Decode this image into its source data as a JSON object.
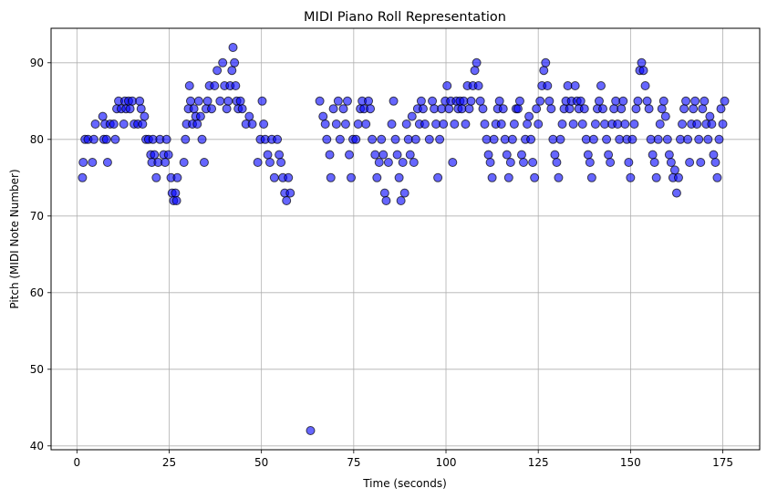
{
  "chart_data": {
    "type": "scatter",
    "title": "MIDI Piano Roll Representation",
    "xlabel": "Time (seconds)",
    "ylabel": "Pitch (MIDI Note Number)",
    "xlim": [
      -7,
      185
    ],
    "ylim": [
      39.5,
      94.5
    ],
    "xticks": [
      0,
      25,
      50,
      75,
      100,
      125,
      150,
      175
    ],
    "yticks": [
      40,
      50,
      60,
      70,
      80,
      90
    ],
    "grid": true,
    "marker_color": "#0000ff",
    "marker_edge": "#000000",
    "series": [
      {
        "points": [
          [
            1.5,
            75
          ],
          [
            1.7,
            77
          ],
          [
            2.2,
            80
          ],
          [
            3,
            80
          ],
          [
            4.2,
            77
          ],
          [
            4.6,
            80
          ],
          [
            5,
            82
          ],
          [
            7,
            83
          ],
          [
            7.3,
            80
          ],
          [
            7.6,
            82
          ],
          [
            8,
            80
          ],
          [
            8.3,
            77
          ],
          [
            9,
            82
          ],
          [
            10,
            82
          ],
          [
            10.4,
            80
          ],
          [
            10.8,
            84
          ],
          [
            11.3,
            85
          ],
          [
            12,
            84
          ],
          [
            12.7,
            82
          ],
          [
            13,
            85
          ],
          [
            13.3,
            84
          ],
          [
            14,
            85
          ],
          [
            14.4,
            84
          ],
          [
            15,
            85
          ],
          [
            15.5,
            82
          ],
          [
            16.5,
            82
          ],
          [
            17,
            85
          ],
          [
            17.4,
            84
          ],
          [
            17.8,
            82
          ],
          [
            18.3,
            83
          ],
          [
            18.7,
            80
          ],
          [
            19.4,
            80
          ],
          [
            20,
            78
          ],
          [
            20.3,
            77
          ],
          [
            20.6,
            80
          ],
          [
            21,
            78
          ],
          [
            21.5,
            75
          ],
          [
            22,
            77
          ],
          [
            22.5,
            80
          ],
          [
            23.5,
            78
          ],
          [
            23.9,
            77
          ],
          [
            24.3,
            80
          ],
          [
            24.8,
            78
          ],
          [
            25.5,
            75
          ],
          [
            25.8,
            73
          ],
          [
            26.2,
            72
          ],
          [
            26.7,
            73
          ],
          [
            27.2,
            75
          ],
          [
            27,
            72
          ],
          [
            29,
            77
          ],
          [
            29.4,
            80
          ],
          [
            29.7,
            82
          ],
          [
            30.2,
            84
          ],
          [
            30.5,
            87
          ],
          [
            30.8,
            85
          ],
          [
            31.3,
            82
          ],
          [
            31.7,
            84
          ],
          [
            32.2,
            83
          ],
          [
            32.6,
            82
          ],
          [
            33,
            85
          ],
          [
            33.5,
            83
          ],
          [
            33.9,
            80
          ],
          [
            34.5,
            77
          ],
          [
            35,
            84
          ],
          [
            35.4,
            85
          ],
          [
            35.9,
            87
          ],
          [
            36.5,
            84
          ],
          [
            37.3,
            87
          ],
          [
            38,
            89
          ],
          [
            38.8,
            85
          ],
          [
            39.5,
            90
          ],
          [
            40,
            87
          ],
          [
            40.6,
            84
          ],
          [
            41,
            85
          ],
          [
            41.5,
            87
          ],
          [
            42,
            89
          ],
          [
            42.3,
            92
          ],
          [
            42.7,
            90
          ],
          [
            43,
            87
          ],
          [
            43.3,
            85
          ],
          [
            43.7,
            84
          ],
          [
            44.3,
            85
          ],
          [
            44.8,
            84
          ],
          [
            45.8,
            82
          ],
          [
            46.7,
            83
          ],
          [
            47.5,
            82
          ],
          [
            49,
            77
          ],
          [
            49.7,
            80
          ],
          [
            50.2,
            85
          ],
          [
            50.6,
            82
          ],
          [
            51,
            80
          ],
          [
            51.7,
            78
          ],
          [
            52.3,
            77
          ],
          [
            52.8,
            80
          ],
          [
            53.5,
            75
          ],
          [
            54.3,
            80
          ],
          [
            54.8,
            78
          ],
          [
            55.3,
            77
          ],
          [
            55.8,
            75
          ],
          [
            56.3,
            73
          ],
          [
            56.8,
            72
          ],
          [
            57.3,
            75
          ],
          [
            57.8,
            73
          ],
          [
            63.3,
            42
          ],
          [
            65.8,
            85
          ],
          [
            66.7,
            83
          ],
          [
            67.3,
            82
          ],
          [
            67.7,
            80
          ],
          [
            68.5,
            78
          ],
          [
            68.8,
            75
          ],
          [
            69.5,
            84
          ],
          [
            70.3,
            82
          ],
          [
            70.8,
            85
          ],
          [
            71.3,
            80
          ],
          [
            72.2,
            84
          ],
          [
            72.8,
            82
          ],
          [
            73.3,
            85
          ],
          [
            73.8,
            78
          ],
          [
            74.3,
            75
          ],
          [
            74.8,
            80
          ],
          [
            75.6,
            80
          ],
          [
            76.2,
            82
          ],
          [
            76.8,
            84
          ],
          [
            77.3,
            85
          ],
          [
            77.8,
            84
          ],
          [
            78.3,
            82
          ],
          [
            79,
            85
          ],
          [
            79.5,
            84
          ],
          [
            80,
            80
          ],
          [
            80.8,
            78
          ],
          [
            81.3,
            75
          ],
          [
            81.9,
            77
          ],
          [
            82.5,
            80
          ],
          [
            83,
            78
          ],
          [
            83.4,
            73
          ],
          [
            83.8,
            72
          ],
          [
            84.4,
            77
          ],
          [
            85.3,
            82
          ],
          [
            85.8,
            85
          ],
          [
            86.3,
            80
          ],
          [
            86.8,
            78
          ],
          [
            87.3,
            75
          ],
          [
            87.8,
            72
          ],
          [
            88.3,
            77
          ],
          [
            88.8,
            73
          ],
          [
            89.3,
            82
          ],
          [
            89.8,
            80
          ],
          [
            90.3,
            78
          ],
          [
            90.8,
            83
          ],
          [
            91.3,
            77
          ],
          [
            91.8,
            80
          ],
          [
            92.3,
            84
          ],
          [
            92.8,
            82
          ],
          [
            93.3,
            85
          ],
          [
            93.8,
            84
          ],
          [
            94.3,
            82
          ],
          [
            95.5,
            80
          ],
          [
            96.3,
            85
          ],
          [
            96.8,
            84
          ],
          [
            97.3,
            82
          ],
          [
            97.8,
            75
          ],
          [
            98.3,
            80
          ],
          [
            98.8,
            84
          ],
          [
            99.3,
            82
          ],
          [
            99.8,
            85
          ],
          [
            100.3,
            87
          ],
          [
            100.8,
            84
          ],
          [
            101.3,
            85
          ],
          [
            101.8,
            77
          ],
          [
            102.3,
            82
          ],
          [
            102.8,
            85
          ],
          [
            103.3,
            84
          ],
          [
            103.8,
            85
          ],
          [
            104.3,
            84
          ],
          [
            104.8,
            85
          ],
          [
            105.3,
            82
          ],
          [
            105.8,
            87
          ],
          [
            106.3,
            84
          ],
          [
            106.8,
            85
          ],
          [
            107.3,
            87
          ],
          [
            107.8,
            89
          ],
          [
            108.3,
            90
          ],
          [
            108.8,
            87
          ],
          [
            109.3,
            85
          ],
          [
            110,
            84
          ],
          [
            110.5,
            82
          ],
          [
            111,
            80
          ],
          [
            111.5,
            78
          ],
          [
            112,
            77
          ],
          [
            112.5,
            75
          ],
          [
            113,
            80
          ],
          [
            113.5,
            82
          ],
          [
            114,
            84
          ],
          [
            114.5,
            85
          ],
          [
            115,
            82
          ],
          [
            115.5,
            84
          ],
          [
            116,
            80
          ],
          [
            116.5,
            78
          ],
          [
            117,
            75
          ],
          [
            117.5,
            77
          ],
          [
            118,
            80
          ],
          [
            118.5,
            82
          ],
          [
            119,
            84
          ],
          [
            119.5,
            84
          ],
          [
            120,
            85
          ],
          [
            120.5,
            78
          ],
          [
            121,
            77
          ],
          [
            121.5,
            80
          ],
          [
            122,
            82
          ],
          [
            122.5,
            83
          ],
          [
            123,
            80
          ],
          [
            123.5,
            77
          ],
          [
            124,
            75
          ],
          [
            124.5,
            84
          ],
          [
            125,
            82
          ],
          [
            125.5,
            85
          ],
          [
            126,
            87
          ],
          [
            126.5,
            89
          ],
          [
            127,
            90
          ],
          [
            127.5,
            87
          ],
          [
            128,
            85
          ],
          [
            128.5,
            84
          ],
          [
            129,
            80
          ],
          [
            129.5,
            78
          ],
          [
            130,
            77
          ],
          [
            130.5,
            75
          ],
          [
            131,
            80
          ],
          [
            131.5,
            82
          ],
          [
            132,
            84
          ],
          [
            132.5,
            85
          ],
          [
            133,
            87
          ],
          [
            133.5,
            84
          ],
          [
            134,
            85
          ],
          [
            134.5,
            82
          ],
          [
            135,
            87
          ],
          [
            135.5,
            85
          ],
          [
            136,
            84
          ],
          [
            136.5,
            85
          ],
          [
            137,
            82
          ],
          [
            137.5,
            84
          ],
          [
            138,
            80
          ],
          [
            138.5,
            78
          ],
          [
            139,
            77
          ],
          [
            139.5,
            75
          ],
          [
            140,
            80
          ],
          [
            140.5,
            82
          ],
          [
            141,
            84
          ],
          [
            141.5,
            85
          ],
          [
            142,
            87
          ],
          [
            142.5,
            84
          ],
          [
            143,
            82
          ],
          [
            143.5,
            80
          ],
          [
            144,
            78
          ],
          [
            144.5,
            77
          ],
          [
            145,
            82
          ],
          [
            145.5,
            84
          ],
          [
            146,
            85
          ],
          [
            146.5,
            82
          ],
          [
            147,
            80
          ],
          [
            147.5,
            84
          ],
          [
            148,
            85
          ],
          [
            148.5,
            82
          ],
          [
            149,
            80
          ],
          [
            149.5,
            77
          ],
          [
            150,
            75
          ],
          [
            150.5,
            80
          ],
          [
            151,
            82
          ],
          [
            151.5,
            84
          ],
          [
            152,
            85
          ],
          [
            152.5,
            89
          ],
          [
            153,
            90
          ],
          [
            153.5,
            89
          ],
          [
            154,
            87
          ],
          [
            154.5,
            85
          ],
          [
            155,
            84
          ],
          [
            155.5,
            80
          ],
          [
            156,
            78
          ],
          [
            156.5,
            77
          ],
          [
            157,
            75
          ],
          [
            157.5,
            80
          ],
          [
            158,
            82
          ],
          [
            158.5,
            84
          ],
          [
            159,
            85
          ],
          [
            159.5,
            83
          ],
          [
            160,
            80
          ],
          [
            160.5,
            78
          ],
          [
            161,
            77
          ],
          [
            161.5,
            75
          ],
          [
            162,
            76
          ],
          [
            162.5,
            73
          ],
          [
            163,
            75
          ],
          [
            163.5,
            80
          ],
          [
            164,
            82
          ],
          [
            164.5,
            84
          ],
          [
            165,
            85
          ],
          [
            165.5,
            80
          ],
          [
            166,
            77
          ],
          [
            166.5,
            82
          ],
          [
            167,
            84
          ],
          [
            167.5,
            85
          ],
          [
            168,
            82
          ],
          [
            168.5,
            80
          ],
          [
            169,
            77
          ],
          [
            169.5,
            84
          ],
          [
            170,
            85
          ],
          [
            170.5,
            82
          ],
          [
            171,
            80
          ],
          [
            171.5,
            83
          ],
          [
            172,
            82
          ],
          [
            172.5,
            78
          ],
          [
            173,
            77
          ],
          [
            173.5,
            75
          ],
          [
            174,
            80
          ],
          [
            174.5,
            84
          ],
          [
            175,
            82
          ],
          [
            175.5,
            85
          ]
        ]
      }
    ]
  }
}
